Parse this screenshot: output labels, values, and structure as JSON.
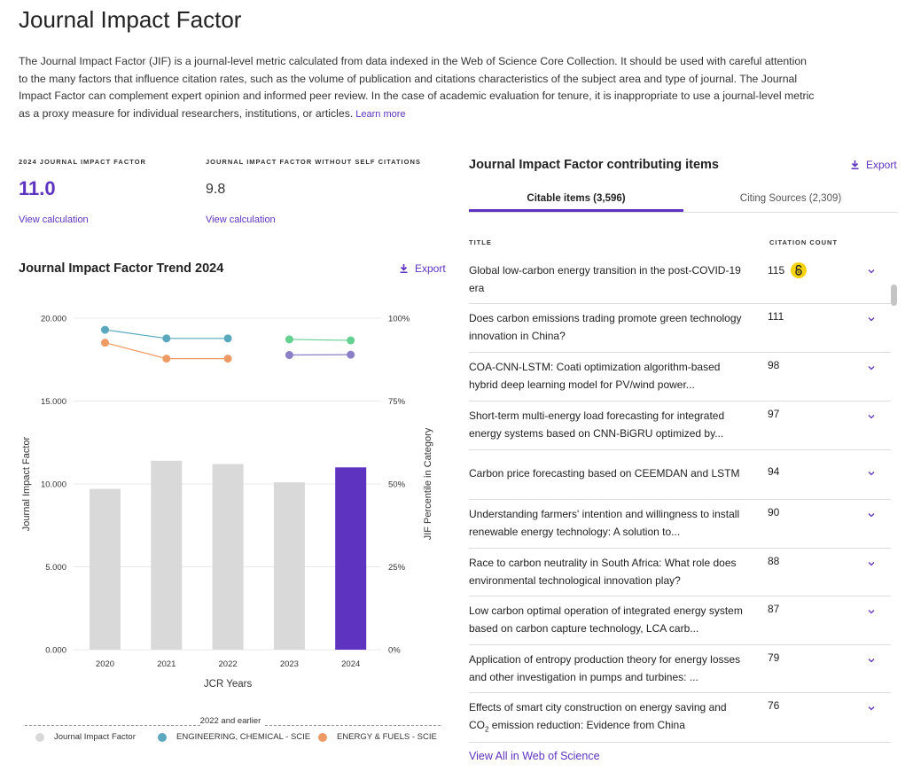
{
  "page": {
    "title": "Journal Impact Factor",
    "intro": "The Journal Impact Factor (JIF) is a journal-level metric calculated from data indexed in the Web of Science Core Collection. It should be used with careful attention to the many factors that influence citation rates, such as the volume of publication and citations characteristics of the subject area and type of journal. The Journal Impact Factor can complement expert opinion and informed peer review. In the case of academic evaluation for tenure, it is inappropriate to use a journal-level metric as a proxy measure for individual researchers, institutions, or articles.",
    "learn_more": "Learn more"
  },
  "metrics": {
    "jif_label": "2024 JOURNAL IMPACT FACTOR",
    "jif_value": "11.0",
    "jif_link": "View calculation",
    "no_self_label": "JOURNAL IMPACT FACTOR WITHOUT SELF CITATIONS",
    "no_self_value": "9.8",
    "no_self_link": "View calculation"
  },
  "trend": {
    "title": "Journal Impact Factor Trend 2024",
    "export": "Export",
    "legend_title": "2022 and earlier",
    "legend": [
      "Journal Impact Factor",
      "ENGINEERING, CHEMICAL - SCIE",
      "ENERGY & FUELS - SCIE"
    ]
  },
  "chart_data": {
    "type": "bar",
    "categories": [
      "2020",
      "2021",
      "2022",
      "2023",
      "2024"
    ],
    "series": [
      {
        "name": "Journal Impact Factor",
        "values": [
          9.7,
          11.4,
          11.2,
          10.1,
          11.0
        ],
        "axis": "left"
      },
      {
        "name": "ENGINEERING, CHEMICAL - SCIE",
        "type": "line",
        "axis": "right",
        "values": [
          96.5,
          93.9,
          93.9,
          null,
          null
        ]
      },
      {
        "name": "ENERGY & FUELS - SCIE",
        "type": "line",
        "axis": "right",
        "values": [
          92.6,
          87.8,
          87.8,
          null,
          null
        ]
      },
      {
        "type": "line",
        "axis": "right",
        "values": [
          null,
          null,
          null,
          93.6,
          93.3
        ]
      },
      {
        "type": "line",
        "axis": "right",
        "values": [
          null,
          null,
          null,
          88.9,
          89.0
        ]
      }
    ],
    "highlight_index": 4,
    "xlabel": "JCR Years",
    "ylabel": "Journal Impact Factor",
    "y2label": "JIF Percentile in Category",
    "ylim": [
      0,
      20
    ],
    "y2lim": [
      0,
      100
    ],
    "yticks": [
      "0.000",
      "5.000",
      "10.000",
      "15.000",
      "20.000"
    ],
    "y2ticks": [
      "0%",
      "25%",
      "50%",
      "75%",
      "100%"
    ],
    "colors": {
      "bar": "#d9d9d9",
      "bar_highlight": "#5e33bf",
      "line_series": [
        "#5aa8bd",
        "#ee9a64",
        "#64d191",
        "#8b7fc8"
      ]
    }
  },
  "contributing": {
    "title": "Journal Impact Factor contributing items",
    "export": "Export",
    "tab_active": "Citable items (3,596)",
    "tab_inactive": "Citing Sources (2,309)",
    "col_title": "TITLE",
    "col_count": "CITATION COUNT",
    "rows": [
      {
        "title": "Global low-carbon energy transition in the post-COVID-19 era",
        "count": "115",
        "oa": true
      },
      {
        "title": "Does carbon emissions trading promote green technology innovation in China?",
        "count": "111"
      },
      {
        "title": "COA-CNN-LSTM: Coati optimization algorithm-based hybrid deep learning model for PV/wind power...",
        "count": "98"
      },
      {
        "title": "Short-term multi-energy load forecasting for integrated energy systems based on CNN-BiGRU optimized by...",
        "count": "97"
      },
      {
        "title": "Carbon price forecasting based on CEEMDAN and LSTM",
        "count": "94"
      },
      {
        "title": "Understanding farmers' intention and willingness to install renewable energy technology: A solution to...",
        "count": "90"
      },
      {
        "title": "Race to carbon neutrality in South Africa: What role does environmental technological innovation play?",
        "count": "88"
      },
      {
        "title": "Low carbon optimal operation of integrated energy system based on carbon capture technology, LCA carb...",
        "count": "87"
      },
      {
        "title": "Application of entropy production theory for energy losses and other investigation in pumps and turbines: ...",
        "count": "79"
      },
      {
        "title_before": "Effects of smart city construction on energy saving and CO",
        "title_sub": "2",
        "title_after": " emission reduction: Evidence from China",
        "count": "76"
      }
    ],
    "view_all": "View All in Web of Science"
  }
}
